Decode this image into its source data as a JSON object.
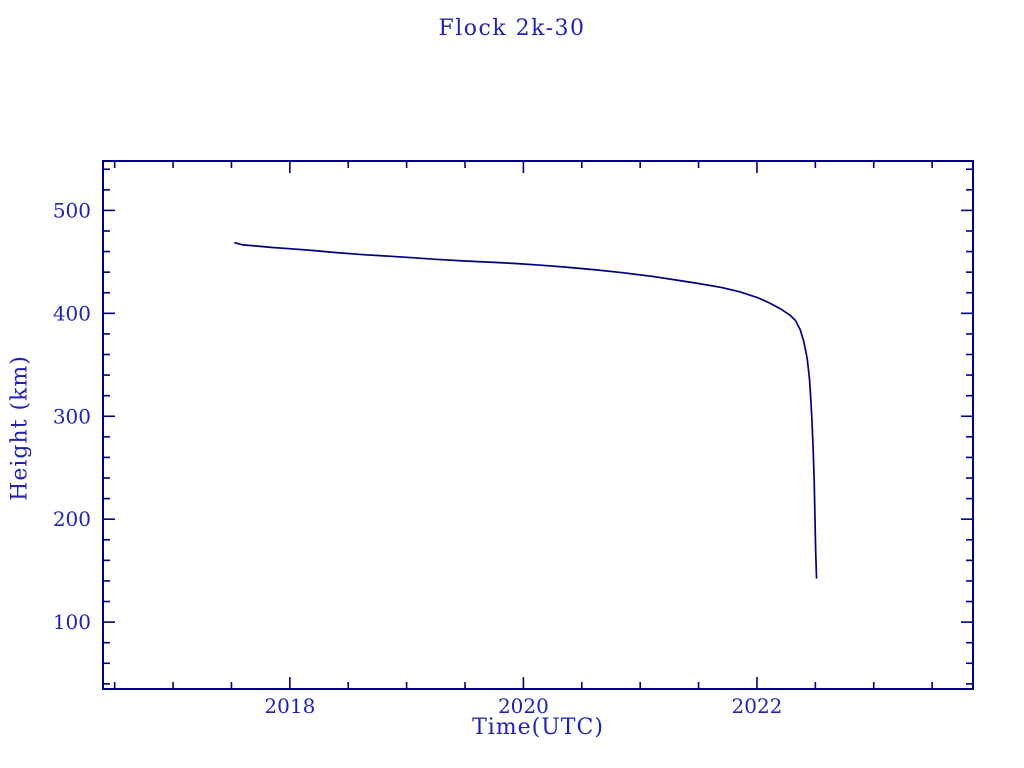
{
  "page": {
    "background_color": "#ffffff"
  },
  "chart_data": {
    "type": "line",
    "title": "Flock 2k-30",
    "xlabel": "Time(UTC)",
    "ylabel": "Height (km)",
    "xlim": [
      2016.4,
      2023.85
    ],
    "ylim": [
      35,
      548
    ],
    "x_major_ticks": [
      2018,
      2020,
      2022
    ],
    "x_tick_labels": [
      "2018",
      "2020",
      "2022"
    ],
    "x_minor_step": 0.5,
    "y_major_ticks": [
      100,
      200,
      300,
      400,
      500
    ],
    "y_tick_labels": [
      "100",
      "200",
      "300",
      "400",
      "500"
    ],
    "y_minor_step": 20,
    "grid": false,
    "legend": "none",
    "colors": {
      "line": "#00007d",
      "axis": "#00007d",
      "text": "#2222b2",
      "background": "#ffffff"
    },
    "series": [
      {
        "name": "Flock 2k-30 orbital height",
        "points": [
          [
            2017.53,
            468.5
          ],
          [
            2017.6,
            466.5
          ],
          [
            2017.7,
            465.5
          ],
          [
            2017.85,
            464.0
          ],
          [
            2018.0,
            462.8
          ],
          [
            2018.2,
            461.0
          ],
          [
            2018.4,
            459.0
          ],
          [
            2018.63,
            457.0
          ],
          [
            2018.85,
            455.5
          ],
          [
            2019.05,
            454.0
          ],
          [
            2019.25,
            452.5
          ],
          [
            2019.5,
            450.8
          ],
          [
            2019.75,
            449.5
          ],
          [
            2019.95,
            448.3
          ],
          [
            2020.15,
            446.8
          ],
          [
            2020.35,
            445.0
          ],
          [
            2020.6,
            442.5
          ],
          [
            2020.85,
            439.5
          ],
          [
            2021.1,
            436.0
          ],
          [
            2021.3,
            432.5
          ],
          [
            2021.5,
            429.0
          ],
          [
            2021.7,
            425.0
          ],
          [
            2021.85,
            421.0
          ],
          [
            2022.0,
            415.5
          ],
          [
            2022.1,
            410.5
          ],
          [
            2022.2,
            404.5
          ],
          [
            2022.28,
            398.5
          ],
          [
            2022.33,
            393.0
          ],
          [
            2022.37,
            384.0
          ],
          [
            2022.4,
            373.0
          ],
          [
            2022.43,
            356.0
          ],
          [
            2022.45,
            336.0
          ],
          [
            2022.46,
            318.0
          ],
          [
            2022.47,
            299.0
          ],
          [
            2022.48,
            272.0
          ],
          [
            2022.49,
            237.0
          ],
          [
            2022.497,
            200.0
          ],
          [
            2022.503,
            168.0
          ],
          [
            2022.51,
            143.0
          ]
        ]
      }
    ]
  }
}
